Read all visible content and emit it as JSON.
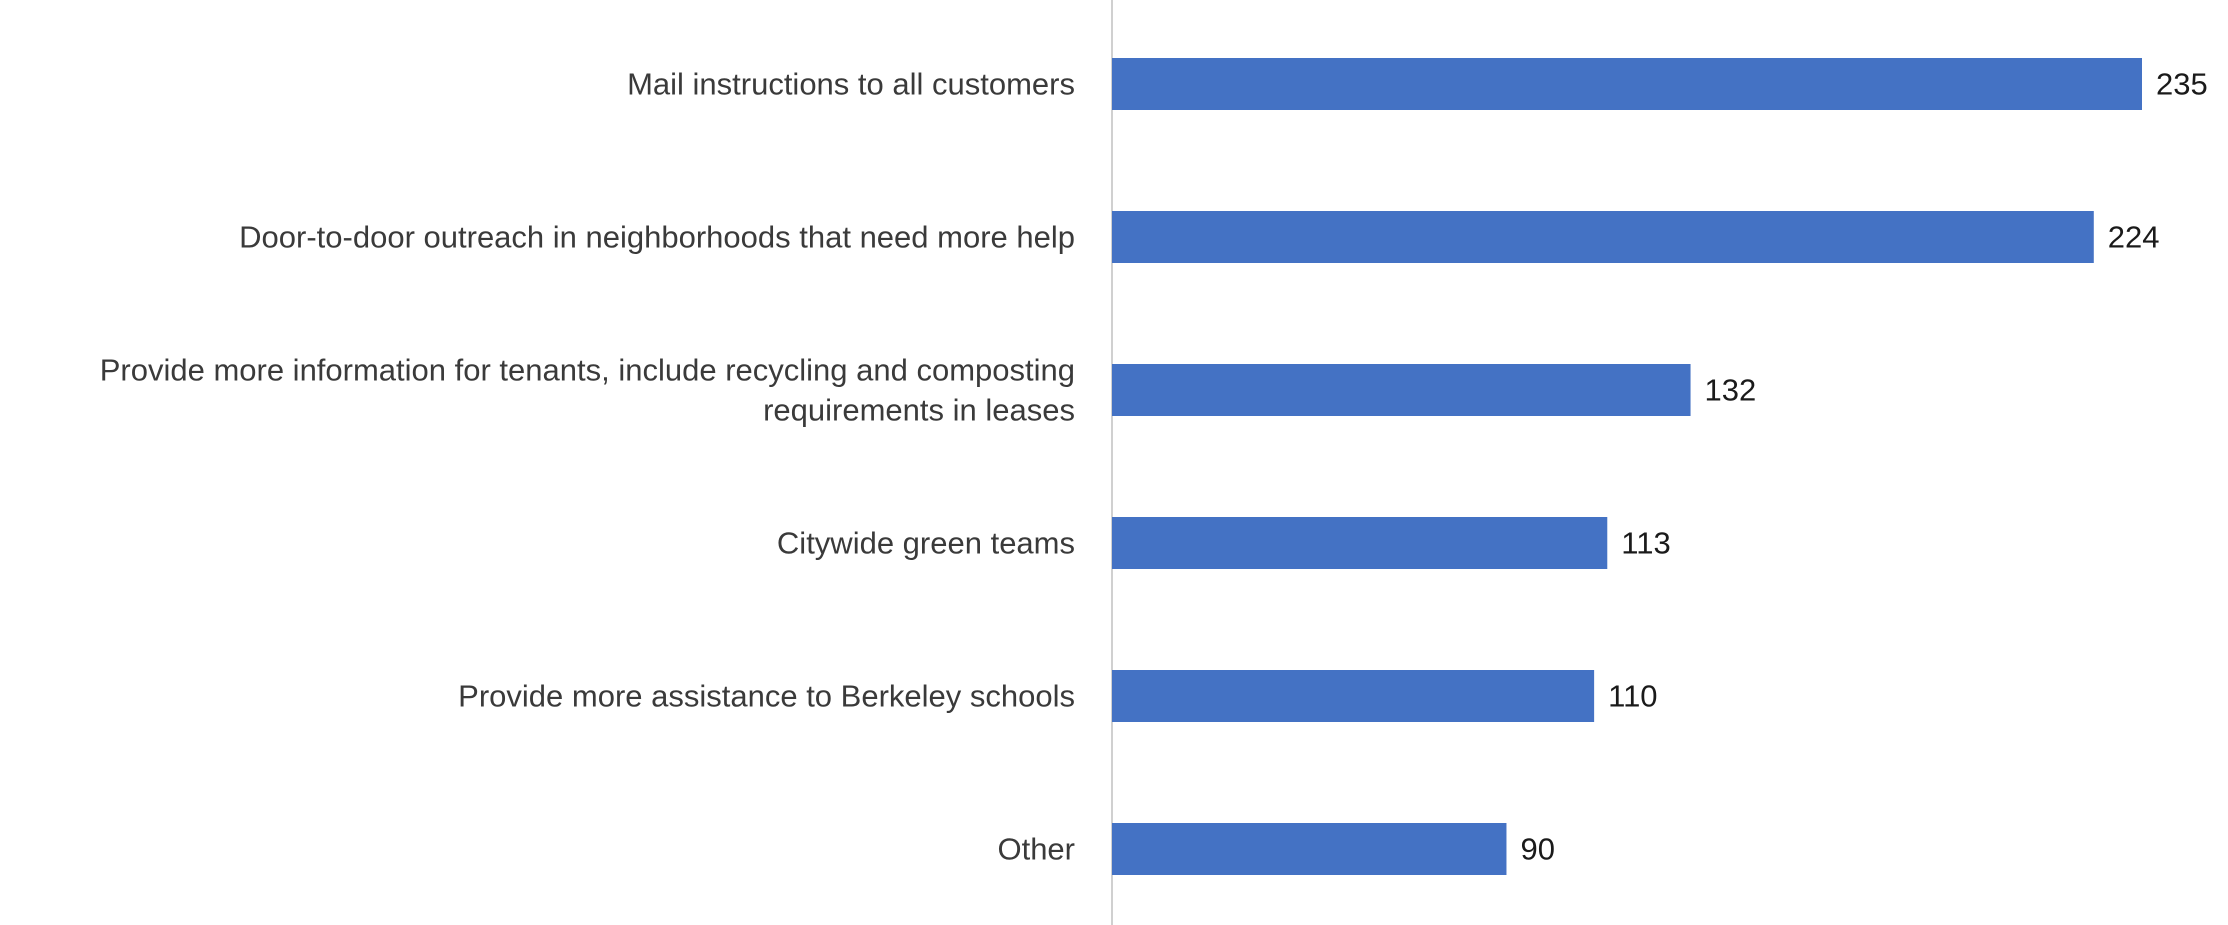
{
  "chart_data": {
    "type": "bar",
    "orientation": "horizontal",
    "categories": [
      [
        "Mail instructions to all customers"
      ],
      [
        "Door-to-door outreach in neighborhoods that need more help"
      ],
      [
        "Provide more information for tenants, include recycling and composting",
        "requirements in leases"
      ],
      [
        "Citywide green teams"
      ],
      [
        "Provide more assistance to Berkeley schools"
      ],
      [
        "Other"
      ]
    ],
    "values": [
      235,
      224,
      132,
      113,
      110,
      90
    ],
    "value_labels": [
      "235",
      "224",
      "132",
      "113",
      "110",
      "90"
    ],
    "xlim": [
      0,
      235
    ],
    "bar_color": "#4472c4",
    "grid": false,
    "legend": "none",
    "title": "",
    "xlabel": "",
    "ylabel": ""
  }
}
